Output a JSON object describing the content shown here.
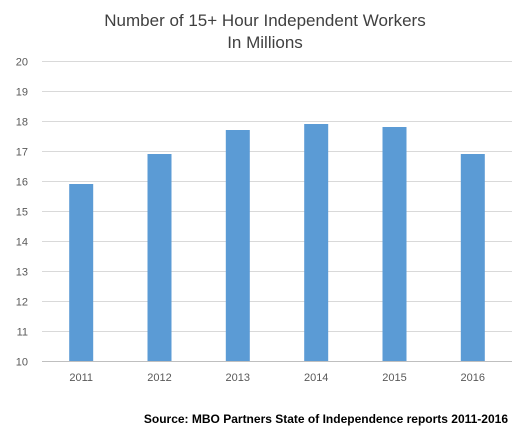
{
  "chart_data": {
    "type": "bar",
    "title": "Number of 15+ Hour Independent Workers",
    "subtitle": "In Millions",
    "xlabel": "",
    "ylabel": "",
    "categories": [
      "2011",
      "2012",
      "2013",
      "2014",
      "2015",
      "2016"
    ],
    "values": [
      15.9,
      16.9,
      17.7,
      17.9,
      17.8,
      16.9
    ],
    "ylim": [
      10,
      20
    ],
    "yticks": [
      10,
      11,
      12,
      13,
      14,
      15,
      16,
      17,
      18,
      19,
      20
    ],
    "grid": true,
    "legend": "none",
    "bar_color": "#5b9bd5"
  },
  "source": "Source: MBO Partners State of Independence reports 2011-2016"
}
